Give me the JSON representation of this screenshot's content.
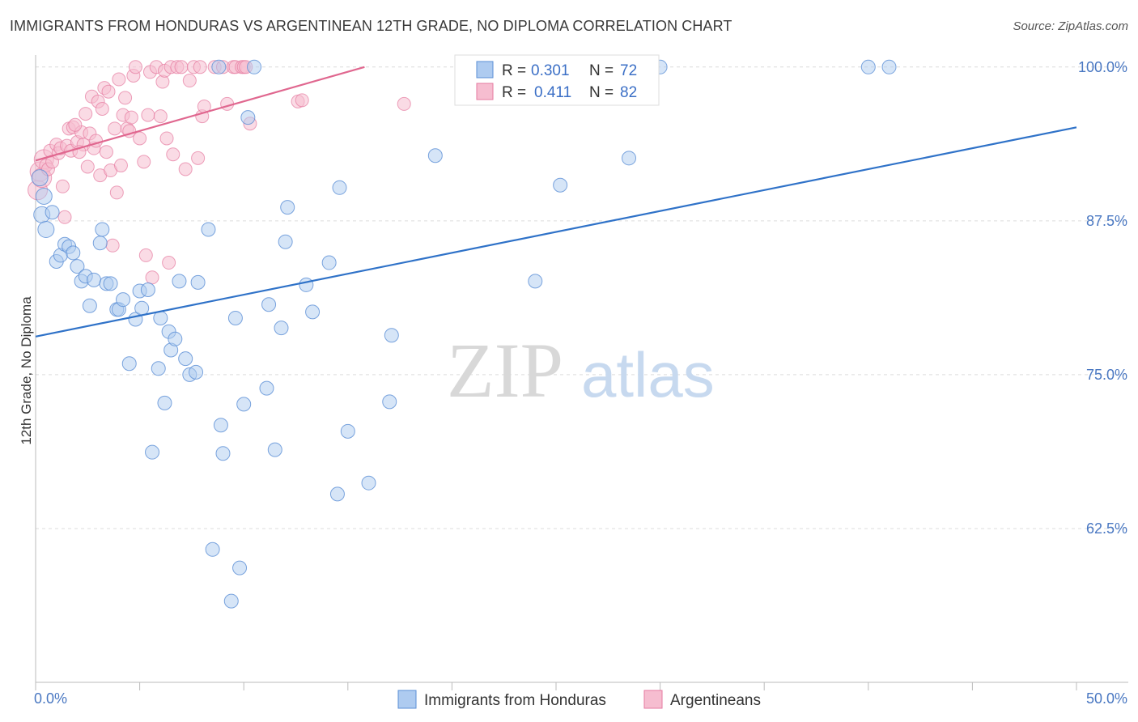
{
  "title": "IMMIGRANTS FROM HONDURAS VS ARGENTINEAN 12TH GRADE, NO DIPLOMA CORRELATION CHART",
  "source": "Source: ZipAtlas.com",
  "watermark": {
    "zip": "ZIP",
    "atlas": "atlas"
  },
  "colors": {
    "blue": "#5b8fd6",
    "blue_fill": "#aecbf0",
    "pink": "#e57aa0",
    "pink_fill": "#f6bdd0",
    "blue_line": "#2f72c8",
    "pink_line": "#e0678f"
  },
  "legend": {
    "rows": [
      {
        "r_label": "R =",
        "r_value": "0.301",
        "n_label": "N =",
        "n_value": "72"
      },
      {
        "r_label": "R =",
        "r_value": "0.411",
        "n_label": "N =",
        "n_value": "82"
      }
    ]
  },
  "bottom_legend": [
    "Immigrants from Honduras",
    "Argentineans"
  ],
  "chart_data": {
    "type": "scatter",
    "ylabel": "12th Grade, No Diploma",
    "xlim": [
      0,
      50
    ],
    "ylim": [
      50,
      101.5
    ],
    "x_tick_labels": [
      "0.0%",
      "50.0%"
    ],
    "y_ticks": [
      62.5,
      75.0,
      87.5,
      100.0
    ],
    "y_tick_labels": [
      "62.5%",
      "75.0%",
      "87.5%",
      "100.0%"
    ],
    "series": [
      {
        "name": "Immigrants from Honduras",
        "R": 0.301,
        "N": 72,
        "trend": {
          "x": [
            0,
            50
          ],
          "y": [
            78.1,
            95.1
          ]
        },
        "points": [
          [
            0.3,
            88.0
          ],
          [
            0.5,
            86.8
          ],
          [
            0.8,
            88.2
          ],
          [
            1.0,
            84.2
          ],
          [
            1.2,
            84.7
          ],
          [
            1.4,
            85.6
          ],
          [
            1.6,
            85.4
          ],
          [
            1.8,
            84.9
          ],
          [
            2.0,
            83.8
          ],
          [
            2.2,
            82.6
          ],
          [
            2.4,
            83.0
          ],
          [
            2.6,
            80.6
          ],
          [
            2.8,
            82.7
          ],
          [
            3.1,
            85.7
          ],
          [
            3.2,
            86.8
          ],
          [
            3.4,
            82.4
          ],
          [
            3.6,
            82.4
          ],
          [
            3.9,
            80.3
          ],
          [
            4.0,
            80.3
          ],
          [
            4.2,
            81.1
          ],
          [
            4.5,
            75.9
          ],
          [
            4.8,
            79.5
          ],
          [
            5.0,
            81.8
          ],
          [
            5.1,
            80.4
          ],
          [
            5.4,
            81.9
          ],
          [
            5.6,
            68.7
          ],
          [
            5.9,
            75.5
          ],
          [
            6.0,
            79.6
          ],
          [
            6.2,
            72.7
          ],
          [
            6.4,
            78.5
          ],
          [
            6.5,
            77.0
          ],
          [
            6.7,
            77.9
          ],
          [
            6.9,
            82.6
          ],
          [
            7.2,
            76.3
          ],
          [
            7.4,
            75.0
          ],
          [
            7.7,
            75.2
          ],
          [
            7.8,
            82.5
          ],
          [
            8.3,
            86.8
          ],
          [
            8.5,
            60.8
          ],
          [
            8.8,
            100.0
          ],
          [
            8.9,
            70.9
          ],
          [
            9.0,
            68.6
          ],
          [
            9.4,
            56.6
          ],
          [
            9.6,
            79.6
          ],
          [
            9.8,
            59.3
          ],
          [
            10.0,
            72.6
          ],
          [
            10.2,
            95.9
          ],
          [
            10.5,
            100.0
          ],
          [
            11.1,
            73.9
          ],
          [
            11.2,
            80.7
          ],
          [
            11.5,
            68.9
          ],
          [
            11.8,
            78.8
          ],
          [
            12.0,
            85.8
          ],
          [
            12.1,
            88.6
          ],
          [
            13.0,
            82.3
          ],
          [
            13.3,
            80.1
          ],
          [
            14.1,
            84.1
          ],
          [
            14.5,
            65.3
          ],
          [
            14.6,
            90.2
          ],
          [
            15.0,
            70.4
          ],
          [
            16.0,
            66.2
          ],
          [
            17.0,
            72.8
          ],
          [
            17.1,
            78.2
          ],
          [
            19.2,
            92.8
          ],
          [
            24.0,
            82.6
          ],
          [
            25.2,
            90.4
          ],
          [
            28.5,
            92.6
          ],
          [
            30.0,
            100.0
          ],
          [
            40.0,
            100.0
          ],
          [
            41.0,
            100.0
          ],
          [
            0.2,
            91.0
          ],
          [
            0.4,
            89.5
          ]
        ]
      },
      {
        "name": "Argentineans",
        "R": 0.411,
        "N": 82,
        "trend": {
          "x": [
            0,
            15.8
          ],
          "y": [
            92.4,
            100.0
          ]
        },
        "points": [
          [
            0.1,
            90.0
          ],
          [
            0.2,
            91.5
          ],
          [
            0.3,
            91.0
          ],
          [
            0.4,
            92.5
          ],
          [
            0.5,
            92.0
          ],
          [
            0.6,
            91.7
          ],
          [
            0.7,
            93.2
          ],
          [
            0.8,
            92.3
          ],
          [
            1.0,
            93.7
          ],
          [
            1.1,
            93.0
          ],
          [
            1.2,
            93.4
          ],
          [
            1.3,
            90.3
          ],
          [
            1.4,
            87.8
          ],
          [
            1.5,
            93.6
          ],
          [
            1.6,
            95.0
          ],
          [
            1.7,
            93.2
          ],
          [
            1.8,
            95.1
          ],
          [
            2.0,
            93.9
          ],
          [
            2.2,
            94.7
          ],
          [
            2.3,
            93.7
          ],
          [
            2.4,
            96.2
          ],
          [
            2.5,
            91.9
          ],
          [
            2.6,
            94.6
          ],
          [
            2.7,
            97.6
          ],
          [
            2.8,
            93.4
          ],
          [
            2.9,
            94.0
          ],
          [
            3.0,
            97.2
          ],
          [
            3.1,
            91.2
          ],
          [
            3.2,
            96.6
          ],
          [
            3.3,
            98.3
          ],
          [
            3.4,
            93.1
          ],
          [
            3.5,
            98.0
          ],
          [
            3.6,
            91.6
          ],
          [
            3.7,
            85.5
          ],
          [
            3.8,
            95.0
          ],
          [
            3.9,
            89.8
          ],
          [
            4.0,
            99.0
          ],
          [
            4.1,
            92.0
          ],
          [
            4.2,
            96.1
          ],
          [
            4.3,
            97.5
          ],
          [
            4.4,
            95.0
          ],
          [
            4.5,
            94.8
          ],
          [
            4.6,
            95.9
          ],
          [
            4.7,
            99.3
          ],
          [
            4.8,
            100.0
          ],
          [
            5.0,
            94.2
          ],
          [
            5.2,
            92.3
          ],
          [
            5.3,
            84.7
          ],
          [
            5.4,
            96.1
          ],
          [
            5.5,
            99.6
          ],
          [
            5.6,
            82.9
          ],
          [
            5.8,
            100.0
          ],
          [
            6.0,
            96.0
          ],
          [
            6.1,
            98.8
          ],
          [
            6.2,
            99.7
          ],
          [
            6.3,
            94.2
          ],
          [
            6.4,
            84.1
          ],
          [
            6.5,
            100.0
          ],
          [
            6.6,
            92.9
          ],
          [
            6.8,
            100.0
          ],
          [
            7.0,
            100.0
          ],
          [
            7.2,
            91.7
          ],
          [
            7.4,
            98.9
          ],
          [
            7.6,
            100.0
          ],
          [
            7.8,
            92.6
          ],
          [
            7.9,
            100.0
          ],
          [
            8.0,
            96.0
          ],
          [
            8.1,
            96.8
          ],
          [
            8.6,
            100.0
          ],
          [
            9.0,
            100.0
          ],
          [
            9.2,
            97.0
          ],
          [
            9.5,
            100.0
          ],
          [
            9.6,
            100.0
          ],
          [
            9.9,
            100.0
          ],
          [
            10.0,
            100.0
          ],
          [
            10.1,
            100.0
          ],
          [
            10.3,
            95.4
          ],
          [
            12.6,
            97.2
          ],
          [
            12.8,
            97.3
          ],
          [
            17.7,
            97.0
          ],
          [
            2.1,
            93.1
          ],
          [
            1.9,
            95.3
          ]
        ]
      }
    ]
  }
}
